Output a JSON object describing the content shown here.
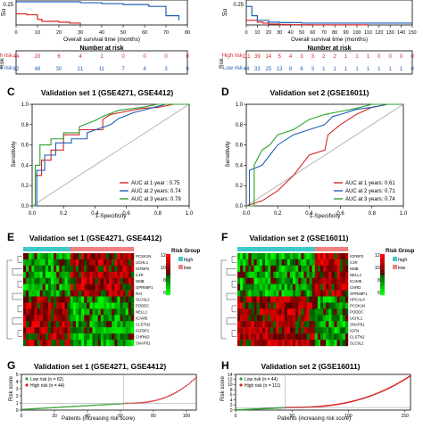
{
  "colors": {
    "high": "#d62728",
    "low": "#1f5fb4",
    "green": "#2ca02c",
    "cyan": "#3fc8c8",
    "salmon": "#f08080",
    "gray": "#888888"
  },
  "top": {
    "xlabel": "Overall survival time (months)",
    "number_at_risk": "Number at risk",
    "risk_axis": "Risk",
    "high_label": "High risk",
    "low_label": "Low risk",
    "left": {
      "ticks": [
        "0",
        "10",
        "20",
        "30",
        "40",
        "50",
        "60",
        "70",
        "80"
      ],
      "high": [
        "44",
        "20",
        "6",
        "4",
        "1",
        "0",
        "0",
        "0",
        "0"
      ],
      "low": [
        "62",
        "48",
        "30",
        "21",
        "11",
        "7",
        "4",
        "3",
        "0"
      ],
      "ytick": "0.25",
      "ylabel": "Su"
    },
    "right": {
      "ticks": [
        "0",
        "10",
        "20",
        "30",
        "40",
        "50",
        "60",
        "70",
        "80",
        "90",
        "100",
        "110",
        "120",
        "130",
        "140",
        "150"
      ],
      "high": [
        "111",
        "39",
        "14",
        "5",
        "4",
        "3",
        "3",
        "2",
        "2",
        "1",
        "1",
        "1",
        "0",
        "0",
        "0",
        "0"
      ],
      "low": [
        "44",
        "33",
        "25",
        "13",
        "8",
        "6",
        "3",
        "1",
        "1",
        "1",
        "1",
        "1",
        "1",
        "1",
        "1",
        "0"
      ],
      "ytick": "0.25",
      "ylabel": "Su"
    }
  },
  "panels": {
    "C": {
      "letter": "C",
      "title": "Validation set 1 (GSE4271, GSE4412)",
      "xlabel": "1-Specificity",
      "ylabel": "Sensitivity",
      "ticks": [
        "0.0",
        "0.2",
        "0.4",
        "0.6",
        "0.8",
        "1.0"
      ],
      "legend": [
        "AUC at 1 year : 0.75",
        "AUC at 2 years: 0.74",
        "AUC at 3 years: 0.79"
      ]
    },
    "D": {
      "letter": "D",
      "title": "Validation set 2 (GSE16011)",
      "xlabel": "1-Specificity",
      "ylabel": "Sensitivity",
      "ticks": [
        "0.0",
        "0.2",
        "0.4",
        "0.6",
        "0.8",
        "1.0"
      ],
      "legend": [
        "AUC at 1 years: 0.61",
        "AUC at 2 years: 0.71",
        "AUC at 3 years: 0.74"
      ]
    },
    "E": {
      "letter": "E",
      "title": "Validation set 1 (GSE4271, GSE4412)",
      "legend_title": "Risk Group",
      "groups": [
        "high",
        "low"
      ],
      "scale": [
        "12",
        "10",
        "8",
        "6"
      ],
      "genes": [
        "PCSK1N",
        "UCHL1",
        "IGFBP2",
        "C1R",
        "NMB",
        "GPR68P1",
        "RAI",
        "SLC9L2",
        "PODDC",
        "NELL1",
        "ICAM5",
        "CLSTN2",
        "IGFBP1",
        "CHRND",
        "SNAP91"
      ]
    },
    "F": {
      "letter": "F",
      "title": "Validation set 2 (GSE16011)",
      "legend_title": "Risk Group",
      "groups": [
        "high",
        "low"
      ],
      "scale": [
        "12",
        "10",
        "8",
        "6"
      ],
      "genes": [
        "IGFBP2",
        "C1R",
        "NMB",
        "NELL1",
        "ICAM5",
        "CHRD",
        "GPR68P1",
        "HPCAL4",
        "PCSK1N",
        "PODDC",
        "UCHL1",
        "SNAP91",
        "IGFN",
        "CLSTN2",
        "SLC9L2"
      ]
    },
    "G": {
      "letter": "G",
      "title": "Validation set 1 (GSE4271, GSE4412)",
      "xlabel": "Patients (increasing risk score)",
      "ylabel": "Risk score",
      "xticks": [
        "0",
        "20",
        "40",
        "60",
        "80",
        "100"
      ],
      "yticks": [
        "0",
        "1",
        "2",
        "3",
        "4",
        "5"
      ],
      "legend": [
        "Low risk  (n = 62)",
        "High risk  (n = 44)"
      ]
    },
    "H": {
      "letter": "H",
      "title": "Validation set 2 (GSE16011)",
      "xlabel": "Patients (increasing risk score)",
      "ylabel": "Risk score",
      "xticks": [
        "0",
        "50",
        "100",
        "150"
      ],
      "yticks": [
        "0",
        "2",
        "4",
        "6",
        "8",
        "10",
        "12",
        "14"
      ],
      "legend": [
        "Low risk  (n = 44)",
        "High risk  (n = 111)"
      ]
    }
  },
  "chart_data": [
    {
      "type": "line",
      "panel": "A-partial",
      "xlabel": "Overall survival time (months)",
      "xlim": [
        0,
        80
      ],
      "ylim": [
        0,
        0.25
      ],
      "series": [
        {
          "name": "High risk",
          "x": [
            0,
            5,
            10,
            12,
            20,
            22,
            25,
            30
          ],
          "y": [
            0.12,
            0.11,
            0.06,
            0.04,
            0.03,
            0.03,
            0.02,
            0.0
          ]
        },
        {
          "name": "Low risk",
          "x": [
            0,
            30,
            40,
            50,
            60,
            62,
            68,
            70,
            76
          ],
          "y": [
            0.25,
            0.24,
            0.23,
            0.22,
            0.22,
            0.2,
            0.2,
            0.1,
            0.05
          ]
        }
      ]
    },
    {
      "type": "line",
      "panel": "B-partial",
      "xlabel": "Overall survival time (months)",
      "xlim": [
        0,
        150
      ],
      "ylim": [
        0,
        0.25
      ],
      "series": [
        {
          "name": "High risk",
          "x": [
            0,
            10,
            15,
            20,
            30,
            40,
            60,
            90,
            110
          ],
          "y": [
            0.05,
            0.03,
            0.02,
            0.01,
            0.005,
            0.003,
            0.002,
            0.001,
            0.0
          ]
        },
        {
          "name": "Low risk",
          "x": [
            0,
            5,
            10,
            20,
            30,
            50,
            80,
            110,
            150
          ],
          "y": [
            0.2,
            0.1,
            0.05,
            0.03,
            0.025,
            0.02,
            0.02,
            0.02,
            0.02
          ]
        }
      ]
    },
    {
      "type": "line",
      "panel": "C",
      "title": "Validation set 1 (GSE4271, GSE4412)",
      "xlabel": "1-Specificity",
      "ylabel": "Sensitivity",
      "xlim": [
        0,
        1
      ],
      "ylim": [
        0,
        1
      ],
      "series": [
        {
          "name": "AUC at 1 year : 0.75",
          "x": [
            0,
            0.02,
            0.02,
            0.06,
            0.06,
            0.12,
            0.12,
            0.2,
            0.2,
            0.3,
            0.3,
            0.45,
            0.45,
            0.5,
            0.6,
            0.7,
            0.8,
            0.9,
            1.0
          ],
          "y": [
            0,
            0,
            0.3,
            0.3,
            0.45,
            0.45,
            0.55,
            0.55,
            0.7,
            0.7,
            0.75,
            0.75,
            0.85,
            0.9,
            0.93,
            0.96,
            0.97,
            1.0,
            1.0
          ]
        },
        {
          "name": "AUC at 2 years: 0.74",
          "x": [
            0,
            0.03,
            0.03,
            0.08,
            0.08,
            0.15,
            0.15,
            0.25,
            0.25,
            0.35,
            0.35,
            0.5,
            0.55,
            0.65,
            0.75,
            0.85,
            1.0
          ],
          "y": [
            0,
            0,
            0.35,
            0.35,
            0.5,
            0.5,
            0.62,
            0.62,
            0.66,
            0.66,
            0.72,
            0.8,
            0.86,
            0.92,
            0.96,
            1.0,
            1.0
          ]
        },
        {
          "name": "AUC at 3 years: 0.79",
          "x": [
            0,
            0.02,
            0.02,
            0.05,
            0.05,
            0.12,
            0.12,
            0.2,
            0.2,
            0.3,
            0.3,
            0.4,
            0.45,
            0.55,
            0.7,
            0.8,
            1.0
          ],
          "y": [
            0,
            0,
            0.4,
            0.4,
            0.6,
            0.6,
            0.66,
            0.66,
            0.72,
            0.72,
            0.78,
            0.84,
            0.88,
            0.94,
            0.97,
            1.0,
            1.0
          ]
        }
      ]
    },
    {
      "type": "line",
      "panel": "D",
      "title": "Validation set 2 (GSE16011)",
      "xlabel": "1-Specificity",
      "ylabel": "Sensitivity",
      "xlim": [
        0,
        1
      ],
      "ylim": [
        0,
        1
      ],
      "series": [
        {
          "name": "AUC at 1 years: 0.61",
          "x": [
            0,
            0.1,
            0.2,
            0.3,
            0.35,
            0.4,
            0.5,
            0.52,
            0.6,
            0.65,
            0.7,
            0.8,
            0.9,
            1.0
          ],
          "y": [
            0,
            0.05,
            0.15,
            0.3,
            0.4,
            0.5,
            0.55,
            0.7,
            0.8,
            0.85,
            0.9,
            0.97,
            1.0,
            1.0
          ]
        },
        {
          "name": "AUC at 2 years: 0.71",
          "x": [
            0,
            0.02,
            0.02,
            0.1,
            0.15,
            0.2,
            0.3,
            0.4,
            0.5,
            0.55,
            0.6,
            0.7,
            0.8,
            0.9,
            1.0
          ],
          "y": [
            0,
            0,
            0.35,
            0.4,
            0.5,
            0.6,
            0.7,
            0.75,
            0.8,
            0.88,
            0.9,
            0.95,
            0.97,
            1.0,
            1.0
          ]
        },
        {
          "name": "AUC at 3 years: 0.74",
          "x": [
            0,
            0.05,
            0.05,
            0.1,
            0.15,
            0.2,
            0.3,
            0.35,
            0.4,
            0.5,
            0.6,
            0.7,
            0.8,
            1.0
          ],
          "y": [
            0,
            0,
            0.4,
            0.55,
            0.6,
            0.7,
            0.75,
            0.8,
            0.85,
            0.9,
            0.93,
            0.96,
            1.0,
            1.0
          ]
        }
      ]
    },
    {
      "type": "scatter",
      "panel": "G",
      "title": "Validation set 1 (GSE4271, GSE4412)",
      "xlabel": "Patients (increasing risk score)",
      "ylabel": "Risk score",
      "xlim": [
        0,
        106
      ],
      "ylim": [
        0,
        5
      ],
      "series": [
        {
          "name": "Low risk  (n = 62)",
          "n": 62,
          "y_start": 0.1,
          "y_end": 0.9
        },
        {
          "name": "High risk  (n = 44)",
          "n": 44,
          "y_start": 0.95,
          "y_end": 4.6
        }
      ],
      "cutoff_x": 62,
      "cutoff_y": 0.93
    },
    {
      "type": "scatter",
      "panel": "H",
      "title": "Validation set 2 (GSE16011)",
      "xlabel": "Patients (increasing risk score)",
      "ylabel": "Risk score",
      "xlim": [
        0,
        155
      ],
      "ylim": [
        0,
        14
      ],
      "series": [
        {
          "name": "Low risk  (n = 44)",
          "n": 44,
          "y_start": 0.05,
          "y_end": 0.95
        },
        {
          "name": "High risk  (n = 111)",
          "n": 111,
          "y_start": 1.0,
          "y_end": 13.5
        }
      ],
      "cutoff_x": 44,
      "cutoff_y": 1.0
    }
  ]
}
